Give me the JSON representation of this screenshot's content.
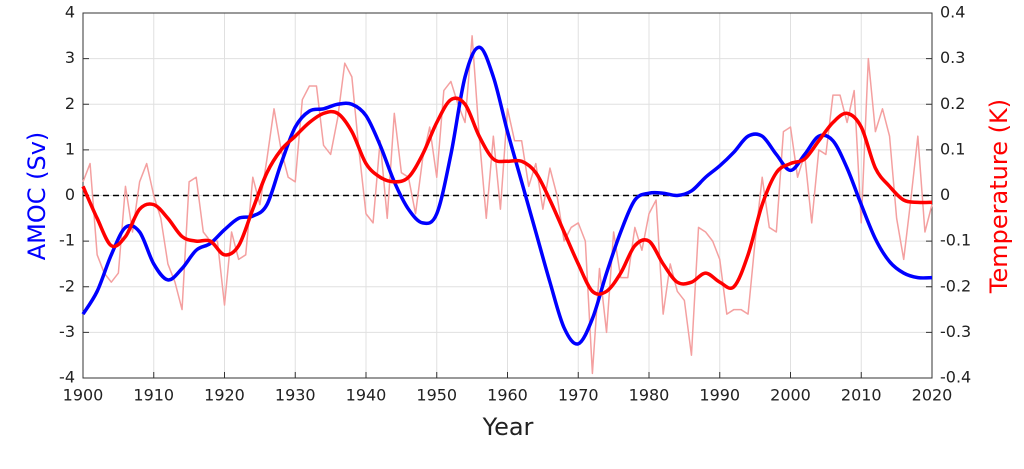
{
  "chart_data": {
    "type": "line",
    "xlabel": "Year",
    "ylabel": "AMOC (Sv)",
    "y2label": "Temperature (K)",
    "ylabel_color": "#0000ff",
    "y2label_color": "#ff0000",
    "xlim": [
      1900,
      2020
    ],
    "xticks": [
      1900,
      1910,
      1920,
      1930,
      1940,
      1950,
      1960,
      1970,
      1980,
      1990,
      2000,
      2010,
      2020
    ],
    "ylim": [
      -4,
      4
    ],
    "yticks": [
      -4,
      -3,
      -2,
      -1,
      0,
      1,
      2,
      3,
      4
    ],
    "y2lim": [
      -0.4,
      0.4
    ],
    "y2ticks": [
      -0.4,
      -0.3,
      -0.2,
      -0.1,
      0,
      0.1,
      0.2,
      0.3,
      0.4
    ],
    "grid": true,
    "reference_line": 0,
    "series": [
      {
        "color": "#f4a0a0",
        "axis": "y2",
        "width": 1.5,
        "smooth": false,
        "x": [
          1900,
          1901,
          1902,
          1903,
          1904,
          1905,
          1906,
          1907,
          1908,
          1909,
          1910,
          1911,
          1912,
          1913,
          1914,
          1915,
          1916,
          1917,
          1918,
          1919,
          1920,
          1921,
          1922,
          1923,
          1924,
          1925,
          1926,
          1927,
          1928,
          1929,
          1930,
          1931,
          1932,
          1933,
          1934,
          1935,
          1936,
          1937,
          1938,
          1939,
          1940,
          1941,
          1942,
          1943,
          1944,
          1945,
          1946,
          1947,
          1948,
          1949,
          1950,
          1951,
          1952,
          1953,
          1954,
          1955,
          1956,
          1957,
          1958,
          1959,
          1960,
          1961,
          1962,
          1963,
          1964,
          1965,
          1966,
          1967,
          1968,
          1969,
          1970,
          1971,
          1972,
          1973,
          1974,
          1975,
          1976,
          1977,
          1978,
          1979,
          1980,
          1981,
          1982,
          1983,
          1984,
          1985,
          1986,
          1987,
          1988,
          1989,
          1990,
          1991,
          1992,
          1993,
          1994,
          1995,
          1996,
          1997,
          1998,
          1999,
          2000,
          2001,
          2002,
          2003,
          2004,
          2005,
          2006,
          2007,
          2008,
          2009,
          2010,
          2011,
          2012,
          2013,
          2014,
          2015,
          2016,
          2017,
          2018,
          2019,
          2020
        ],
        "values": [
          0.03,
          0.07,
          -0.13,
          -0.17,
          -0.19,
          -0.17,
          0.02,
          -0.08,
          0.03,
          0.07,
          0.0,
          -0.05,
          -0.15,
          -0.19,
          -0.25,
          0.03,
          0.04,
          -0.08,
          -0.1,
          -0.1,
          -0.24,
          -0.08,
          -0.14,
          -0.13,
          0.04,
          -0.02,
          0.08,
          0.19,
          0.1,
          0.04,
          0.03,
          0.21,
          0.24,
          0.24,
          0.11,
          0.09,
          0.17,
          0.29,
          0.26,
          0.1,
          -0.04,
          -0.06,
          0.12,
          -0.05,
          0.18,
          0.05,
          0.04,
          -0.04,
          0.08,
          0.15,
          0.04,
          0.23,
          0.25,
          0.2,
          0.16,
          0.35,
          0.13,
          -0.05,
          0.13,
          -0.03,
          0.19,
          0.12,
          0.12,
          0.02,
          0.07,
          -0.03,
          0.06,
          0.0,
          -0.1,
          -0.07,
          -0.06,
          -0.1,
          -0.39,
          -0.16,
          -0.3,
          -0.08,
          -0.18,
          -0.18,
          -0.07,
          -0.12,
          -0.04,
          -0.01,
          -0.26,
          -0.15,
          -0.21,
          -0.23,
          -0.35,
          -0.07,
          -0.08,
          -0.1,
          -0.14,
          -0.26,
          -0.25,
          -0.25,
          -0.26,
          -0.1,
          0.04,
          -0.07,
          -0.08,
          0.14,
          0.15,
          0.04,
          0.09,
          -0.06,
          0.1,
          0.09,
          0.22,
          0.22,
          0.16,
          0.23,
          -0.06,
          0.3,
          0.14,
          0.19,
          0.13,
          -0.05,
          -0.14,
          -0.01,
          0.13,
          -0.08,
          -0.02
        ]
      },
      {
        "color": "#0000ff",
        "axis": "y",
        "width": 3.5,
        "smooth": true,
        "x": [
          1900,
          1902,
          1904,
          1906,
          1908,
          1910,
          1912,
          1914,
          1916,
          1918,
          1920,
          1922,
          1924,
          1926,
          1928,
          1930,
          1932,
          1934,
          1936,
          1938,
          1940,
          1942,
          1944,
          1946,
          1948,
          1950,
          1952,
          1954,
          1956,
          1958,
          1960,
          1962,
          1964,
          1966,
          1968,
          1970,
          1972,
          1974,
          1976,
          1978,
          1980,
          1982,
          1984,
          1986,
          1988,
          1990,
          1992,
          1994,
          1996,
          1998,
          2000,
          2002,
          2004,
          2006,
          2008,
          2010,
          2012,
          2014,
          2016,
          2018,
          2020
        ],
        "values": [
          -2.6,
          -2.1,
          -1.3,
          -0.7,
          -0.8,
          -1.5,
          -1.85,
          -1.6,
          -1.2,
          -1.05,
          -0.75,
          -0.5,
          -0.45,
          -0.2,
          0.7,
          1.5,
          1.85,
          1.9,
          2.0,
          2.0,
          1.75,
          1.1,
          0.3,
          -0.3,
          -0.6,
          -0.4,
          0.9,
          2.6,
          3.25,
          2.6,
          1.4,
          0.3,
          -0.8,
          -1.9,
          -2.9,
          -3.25,
          -2.7,
          -1.7,
          -0.8,
          -0.1,
          0.05,
          0.05,
          0.0,
          0.1,
          0.4,
          0.65,
          0.95,
          1.3,
          1.3,
          0.9,
          0.55,
          0.9,
          1.3,
          1.2,
          0.6,
          -0.2,
          -0.95,
          -1.45,
          -1.7,
          -1.8,
          -1.8
        ]
      },
      {
        "color": "#ff0000",
        "axis": "y2",
        "width": 3.5,
        "smooth": true,
        "x": [
          1900,
          1902,
          1904,
          1906,
          1908,
          1910,
          1912,
          1914,
          1916,
          1918,
          1920,
          1922,
          1924,
          1926,
          1928,
          1930,
          1932,
          1934,
          1936,
          1938,
          1940,
          1942,
          1944,
          1946,
          1948,
          1950,
          1952,
          1954,
          1956,
          1958,
          1960,
          1962,
          1964,
          1966,
          1968,
          1970,
          1972,
          1974,
          1976,
          1978,
          1980,
          1982,
          1984,
          1986,
          1988,
          1990,
          1992,
          1994,
          1996,
          1998,
          2000,
          2002,
          2004,
          2006,
          2008,
          2010,
          2012,
          2014,
          2016,
          2018,
          2020
        ],
        "values": [
          0.02,
          -0.05,
          -0.11,
          -0.09,
          -0.03,
          -0.02,
          -0.05,
          -0.09,
          -0.1,
          -0.1,
          -0.13,
          -0.11,
          -0.03,
          0.05,
          0.1,
          0.13,
          0.16,
          0.18,
          0.18,
          0.14,
          0.07,
          0.04,
          0.03,
          0.04,
          0.09,
          0.16,
          0.21,
          0.2,
          0.13,
          0.08,
          0.075,
          0.075,
          0.05,
          -0.01,
          -0.08,
          -0.15,
          -0.21,
          -0.21,
          -0.17,
          -0.11,
          -0.1,
          -0.15,
          -0.19,
          -0.19,
          -0.17,
          -0.19,
          -0.2,
          -0.13,
          -0.02,
          0.05,
          0.07,
          0.08,
          0.12,
          0.16,
          0.18,
          0.15,
          0.06,
          0.02,
          -0.01,
          -0.015,
          -0.015
        ]
      }
    ]
  }
}
